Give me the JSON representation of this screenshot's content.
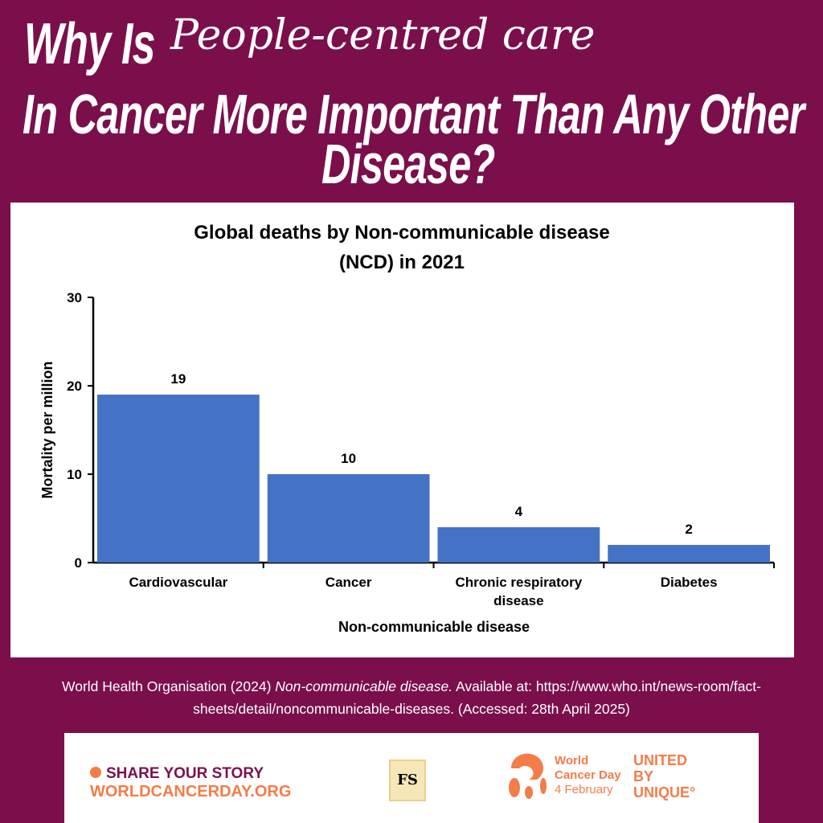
{
  "headline": {
    "line1_bold": "Why Is",
    "line1_script": "People-centred care",
    "line2": "In Cancer More Important Than Any Other",
    "line3": "Disease?"
  },
  "chart_data": {
    "type": "bar",
    "title": "Global deaths by Non-communicable disease",
    "title_line2": "(NCD) in 2021",
    "categories": [
      "Cardiovascular",
      "Cancer",
      "Chronic respiratory",
      "Diabetes"
    ],
    "category_line2": [
      "",
      "",
      "disease",
      ""
    ],
    "values": [
      19,
      10,
      4,
      2
    ],
    "value_labels": [
      "19",
      "10",
      "4",
      "2"
    ],
    "xlabel": "Non-communicable disease",
    "ylabel": "Mortality per million",
    "ylim": [
      0,
      30
    ],
    "yticks": [
      "0",
      "10",
      "20",
      "30"
    ],
    "bar_color": "#4472c4",
    "grid": false
  },
  "citation": {
    "pre": "World Health Organisation (2024) ",
    "italic": "Non-communicable disease.",
    "post": " Available at: https://www.who.int/news-room/fact-sheets/detail/noncommunicable-diseases. (Accessed: 28th April 2025)"
  },
  "footer": {
    "share": "SHARE YOUR STORY",
    "site": "WORLDCANCERDAY.ORG",
    "fs_logo": "FS",
    "wcd_line1": "World",
    "wcd_line2": "Cancer Day",
    "wcd_line3": "4 February",
    "ubu1": "UNITED",
    "ubu2": "BY",
    "ubu3": "UNIQUE°"
  }
}
